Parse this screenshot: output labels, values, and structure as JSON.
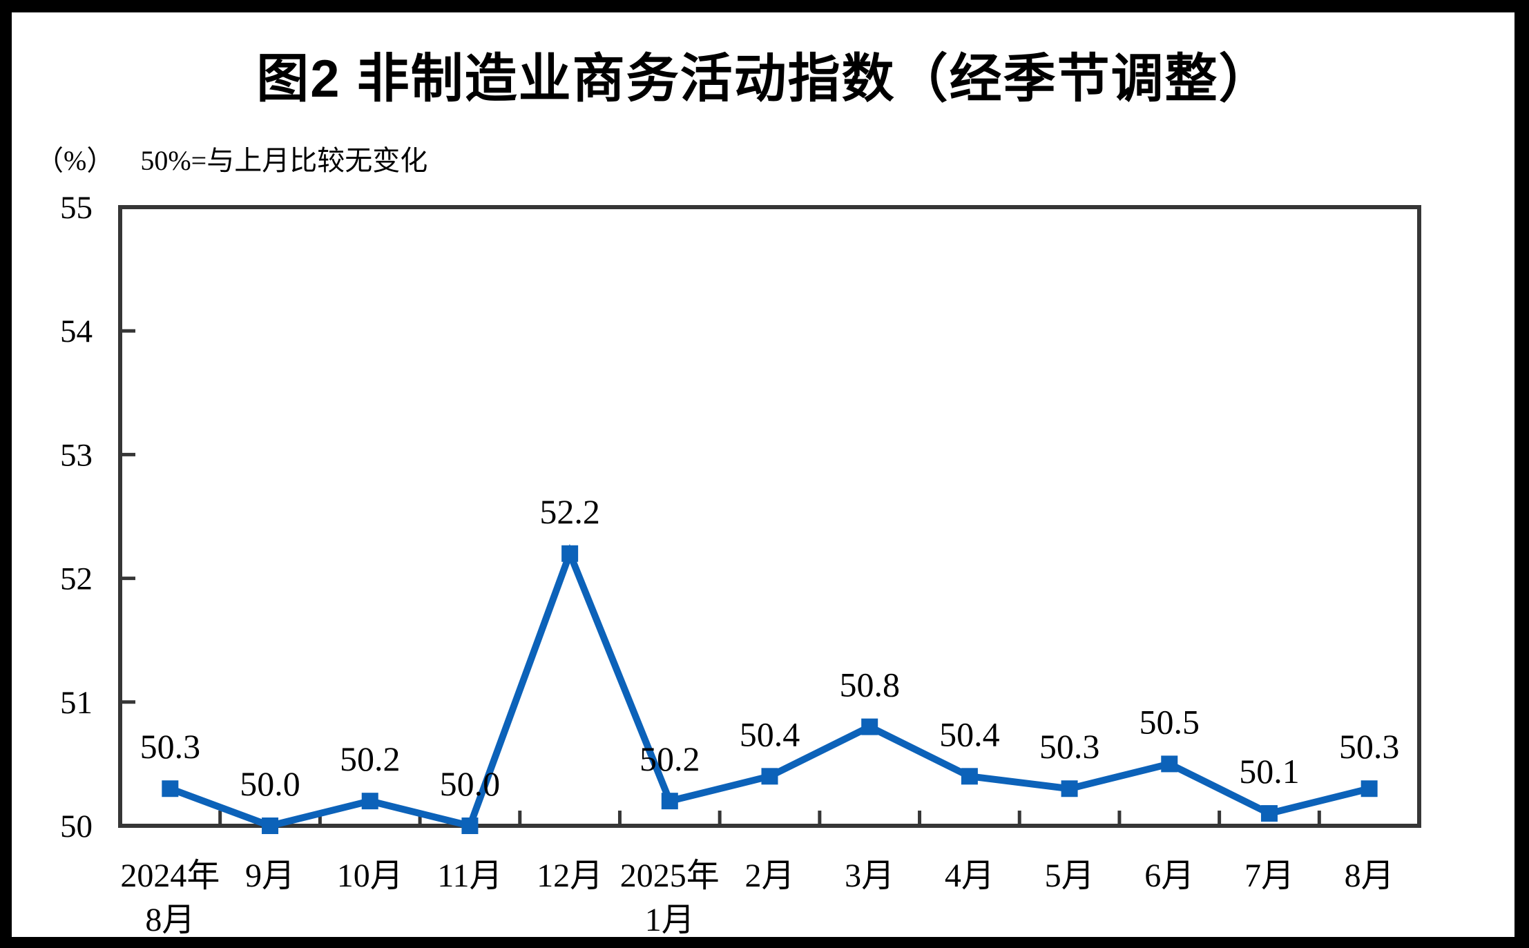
{
  "title": "图2 非制造业商务活动指数（经季节调整）",
  "y_axis": {
    "unit_label": "（%）",
    "note": "50%=与上月比较无变化"
  },
  "chart_data": {
    "type": "line",
    "title": "图2 非制造业商务活动指数（经季节调整）",
    "ylabel": "（%）",
    "annotation": "50%=与上月比较无变化",
    "categories": [
      "2024年\n8月",
      "9月",
      "10月",
      "11月",
      "12月",
      "2025年\n1月",
      "2月",
      "3月",
      "4月",
      "5月",
      "6月",
      "7月",
      "8月"
    ],
    "values": [
      50.3,
      50.0,
      50.2,
      50.0,
      52.2,
      50.2,
      50.4,
      50.8,
      50.4,
      50.3,
      50.5,
      50.1,
      50.3
    ],
    "data_labels": [
      "50.3",
      "50.0",
      "50.2",
      "50.0",
      "52.2",
      "50.2",
      "50.4",
      "50.8",
      "50.4",
      "50.3",
      "50.5",
      "50.1",
      "50.3"
    ],
    "ylim": [
      50,
      55
    ],
    "yticks": [
      50,
      51,
      52,
      53,
      54,
      55
    ],
    "grid": false,
    "legend": false,
    "marker": "square",
    "line_color": "#0c62b9",
    "axis_color": "#363636"
  }
}
